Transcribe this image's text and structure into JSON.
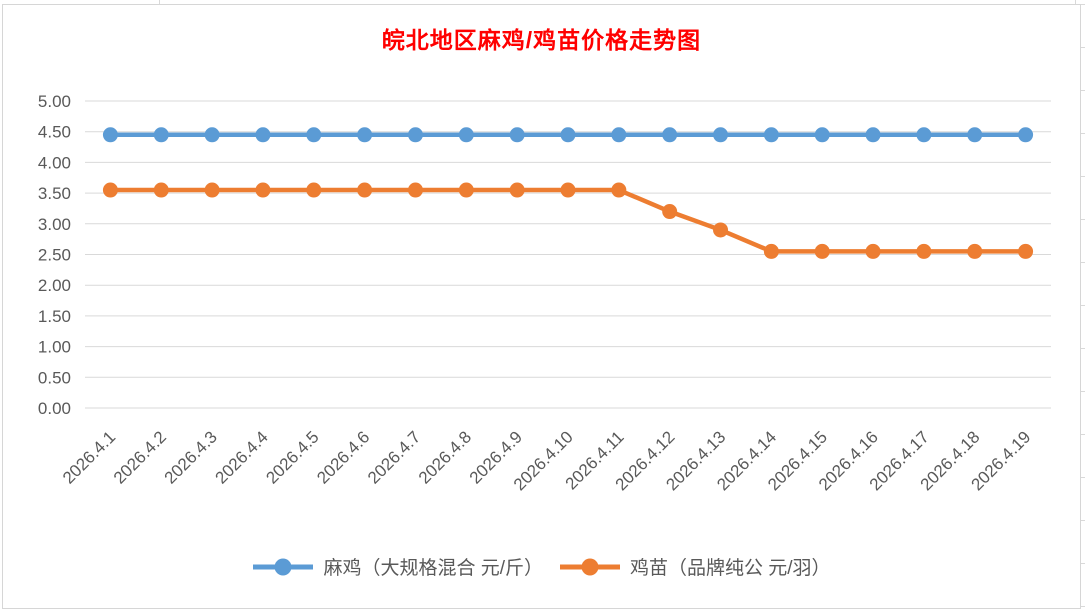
{
  "page": {
    "background_color": "#ffffff",
    "frame_border_color": "#d6d6d6",
    "spreadsheet_line_color": "#d9d9d9"
  },
  "chart_data": {
    "type": "line",
    "title": "皖北地区麻鸡/鸡苗价格走势图",
    "title_color": "#FF0000",
    "categories": [
      "2026.4.1",
      "2026.4.2",
      "2026.4.3",
      "2026.4.4",
      "2026.4.5",
      "2026.4.6",
      "2026.4.7",
      "2026.4.8",
      "2026.4.9",
      "2026.4.10",
      "2026.4.11",
      "2026.4.12",
      "2026.4.13",
      "2026.4.14",
      "2026.4.15",
      "2026.4.16",
      "2026.4.17",
      "2026.4.18",
      "2026.4.19"
    ],
    "series": [
      {
        "name": "麻鸡（大规格混合 元/斤）",
        "color": "#5B9BD5",
        "values": [
          4.45,
          4.45,
          4.45,
          4.45,
          4.45,
          4.45,
          4.45,
          4.45,
          4.45,
          4.45,
          4.45,
          4.45,
          4.45,
          4.45,
          4.45,
          4.45,
          4.45,
          4.45,
          4.45
        ]
      },
      {
        "name": "鸡苗（品牌纯公 元/羽）",
        "color": "#ED7D31",
        "values": [
          3.55,
          3.55,
          3.55,
          3.55,
          3.55,
          3.55,
          3.55,
          3.55,
          3.55,
          3.55,
          3.55,
          3.2,
          2.9,
          2.55,
          2.55,
          2.55,
          2.55,
          2.55,
          2.55
        ]
      }
    ],
    "ylim": [
      0,
      5
    ],
    "ytick_step": 0.5,
    "ytick_labels": [
      "5.00",
      "4.50",
      "4.00",
      "3.50",
      "3.00",
      "2.50",
      "2.00",
      "1.50",
      "1.00",
      "0.50",
      "0.00"
    ],
    "grid": true,
    "gridline_color": "#D9D9D9",
    "axis_text_color": "#595959",
    "legend_position": "bottom",
    "xlabel": "",
    "ylabel": ""
  }
}
